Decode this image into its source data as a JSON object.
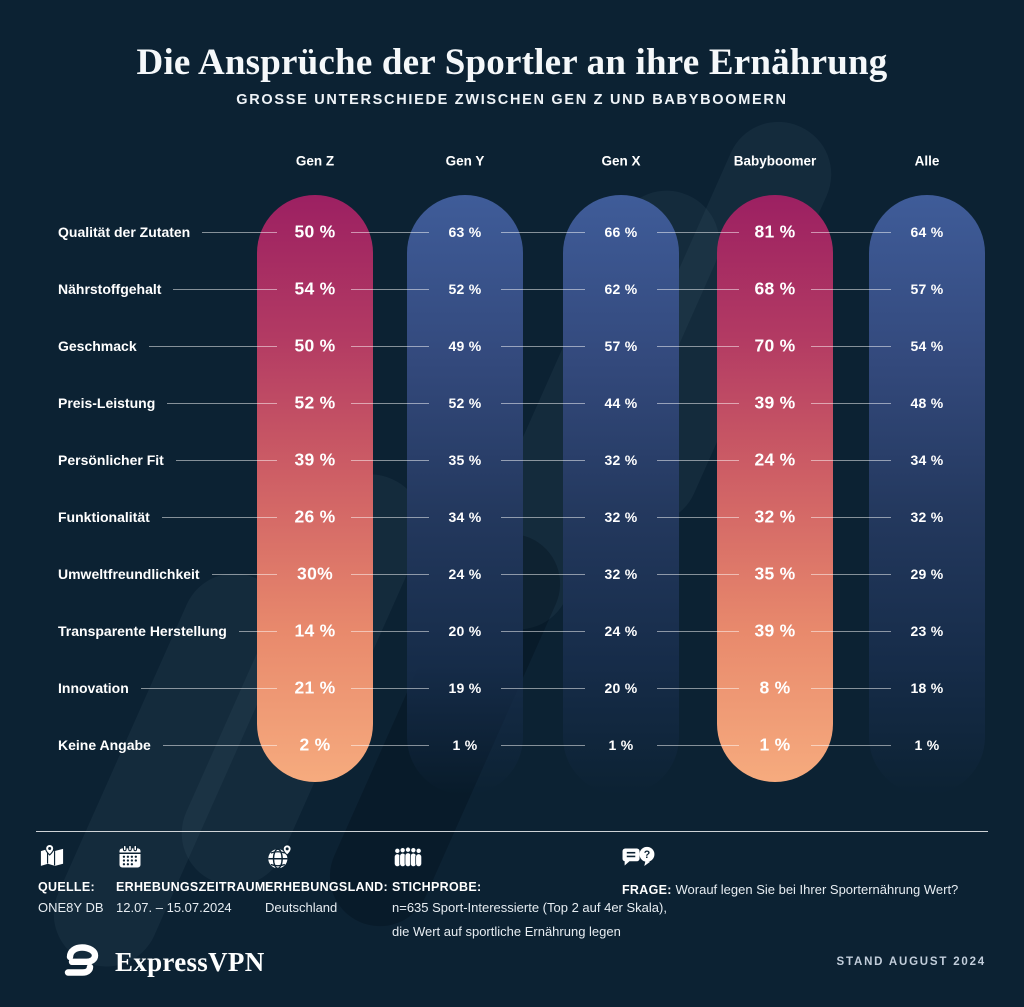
{
  "page": {
    "title": "Die Ansprüche der Sportler an ihre Ernährung",
    "subtitle": "GROSSE UNTERSCHIEDE ZWISCHEN GEN Z UND BABYBOOMERN",
    "brand": "ExpressVPN",
    "stand_note": "STAND AUGUST 2024"
  },
  "chart_data": {
    "type": "table",
    "title": "Die Ansprüche der Sportler an ihre Ernährung",
    "subtitle": "GROSSE UNTERSCHIEDE ZWISCHEN GEN Z UND BABYBOOMERN",
    "value_unit": "%",
    "legend_position": "top",
    "categories": [
      "Qualität der Zutaten",
      "Nährstoffgehalt",
      "Geschmack",
      "Preis-Leistung",
      "Persönlicher Fit",
      "Funktionalität",
      "Umweltfreundlichkeit",
      "Transparente Herstellung",
      "Innovation",
      "Keine Angabe"
    ],
    "series": [
      {
        "name": "Gen Z",
        "highlight": true,
        "values": [
          50,
          54,
          50,
          52,
          39,
          26,
          30,
          14,
          21,
          2
        ],
        "display": [
          "50 %",
          "54 %",
          "50 %",
          "52 %",
          "39 %",
          "26 %",
          "30%",
          "14 %",
          "21 %",
          "2 %"
        ]
      },
      {
        "name": "Gen Y",
        "highlight": false,
        "values": [
          63,
          52,
          49,
          52,
          35,
          34,
          24,
          20,
          19,
          1
        ],
        "display": [
          "63 %",
          "52 %",
          "49 %",
          "52 %",
          "35 %",
          "34 %",
          "24 %",
          "20 %",
          "19 %",
          "1 %"
        ]
      },
      {
        "name": "Gen X",
        "highlight": false,
        "values": [
          66,
          62,
          57,
          44,
          32,
          32,
          32,
          24,
          20,
          1
        ],
        "display": [
          "66 %",
          "62 %",
          "57 %",
          "44 %",
          "32 %",
          "32 %",
          "32 %",
          "24 %",
          "20 %",
          "1 %"
        ]
      },
      {
        "name": "Babyboomer",
        "highlight": true,
        "values": [
          81,
          68,
          70,
          39,
          24,
          32,
          35,
          39,
          8,
          1
        ],
        "display": [
          "81 %",
          "68 %",
          "70 %",
          "39 %",
          "24 %",
          "32 %",
          "35 %",
          "39 %",
          "8 %",
          "1 %"
        ]
      },
      {
        "name": "Alle",
        "highlight": false,
        "values": [
          64,
          57,
          54,
          48,
          34,
          32,
          29,
          23,
          18,
          1
        ],
        "display": [
          "64 %",
          "57 %",
          "54 %",
          "48 %",
          "34 %",
          "32 %",
          "29 %",
          "23 %",
          "18 %",
          "1 %"
        ]
      }
    ],
    "highlight_gradient": [
      "#9c2062",
      "#f6ab7e"
    ],
    "regular_gradient": [
      "#3f5c99",
      "#0d2233"
    ],
    "background_color": "#0c2233"
  },
  "footer": {
    "items": [
      {
        "icon": "map-icon",
        "label": "QUELLE:",
        "inline": false,
        "lines": [
          "ONE8Y DB"
        ]
      },
      {
        "icon": "calendar-icon",
        "label": "ERHEBUNGSZEITRAUM:",
        "inline": false,
        "lines": [
          "12.07. – 15.07.2024"
        ]
      },
      {
        "icon": "globe-pin-icon",
        "label": "ERHEBUNGSLAND:",
        "inline": false,
        "lines": [
          "Deutschland"
        ]
      },
      {
        "icon": "people-icon",
        "label": "STICHPROBE:",
        "inline": false,
        "lines": [
          "n=635 Sport-Interessierte (Top 2 auf 4er Skala),",
          "die Wert auf sportliche Ernährung legen"
        ]
      },
      {
        "icon": "question-chat-icon",
        "label": "FRAGE:",
        "inline": true,
        "lines": [
          "Worauf legen Sie bei Ihrer Sporternährung Wert?"
        ]
      }
    ]
  }
}
